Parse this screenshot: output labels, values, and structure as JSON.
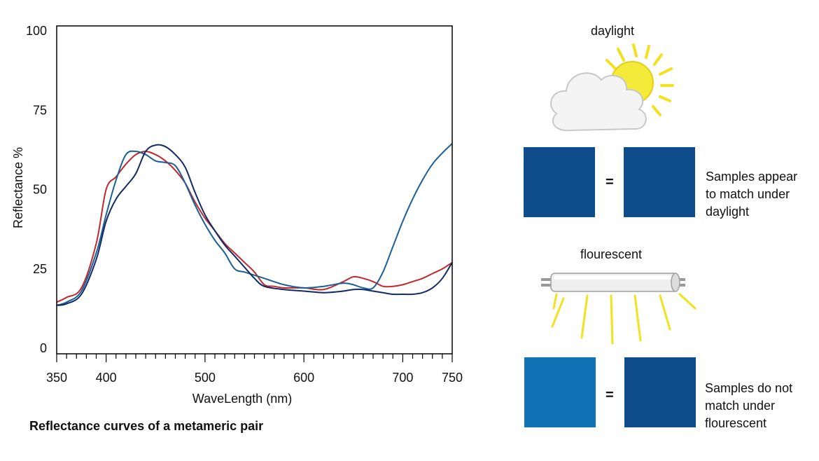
{
  "chart_data": {
    "type": "line",
    "title": "",
    "xlabel": "WaveLength (nm)",
    "ylabel": "Reflectance %",
    "xlim": [
      350,
      750
    ],
    "ylim": [
      0,
      100
    ],
    "xticks": [
      350,
      400,
      500,
      600,
      700,
      750
    ],
    "yticks": [
      0,
      25,
      50,
      75,
      100
    ],
    "grid": false,
    "series": [
      {
        "color": "#c0282d",
        "x": [
          350,
          360,
          375,
          390,
          400,
          410,
          420,
          430,
          440,
          450,
          460,
          470,
          480,
          490,
          500,
          510,
          520,
          530,
          540,
          550,
          560,
          570,
          580,
          600,
          620,
          640,
          650,
          660,
          670,
          680,
          690,
          700,
          710,
          720,
          730,
          740,
          750
        ],
        "y": [
          14.5,
          16,
          19,
          33,
          50,
          54,
          58,
          61,
          62,
          61,
          59,
          56,
          52,
          46,
          41,
          37,
          33,
          30,
          27,
          24,
          20,
          19.5,
          19,
          19,
          18.5,
          21,
          22.5,
          22,
          21,
          19.5,
          19.5,
          20,
          21,
          22,
          23.5,
          25,
          27
        ]
      },
      {
        "color": "#1a5f96",
        "x": [
          350,
          360,
          375,
          390,
          400,
          410,
          420,
          430,
          440,
          450,
          460,
          470,
          480,
          490,
          500,
          510,
          520,
          530,
          540,
          550,
          560,
          580,
          600,
          620,
          640,
          650,
          660,
          670,
          680,
          690,
          700,
          710,
          720,
          730,
          740,
          750
        ],
        "y": [
          13.5,
          14.5,
          18,
          30,
          42,
          53,
          61,
          62,
          61,
          59,
          58.5,
          57.5,
          52,
          45,
          39,
          34,
          30,
          25,
          24,
          23,
          22,
          20,
          19,
          19.5,
          20.5,
          20,
          19,
          19,
          24,
          32,
          40,
          47,
          53,
          58,
          61.5,
          64.5
        ]
      },
      {
        "color": "#102a66",
        "x": [
          350,
          360,
          375,
          390,
          400,
          410,
          420,
          430,
          440,
          450,
          460,
          470,
          480,
          490,
          500,
          510,
          520,
          530,
          540,
          550,
          560,
          580,
          600,
          620,
          640,
          650,
          660,
          670,
          680,
          690,
          700,
          710,
          720,
          730,
          740,
          750
        ],
        "y": [
          13.5,
          14,
          17,
          28,
          40,
          47,
          51,
          55,
          62,
          64,
          63.5,
          61,
          57,
          49,
          42,
          37,
          32.5,
          29,
          25.5,
          22,
          19.5,
          18.5,
          18,
          17.5,
          18,
          18.5,
          18.5,
          18,
          17.5,
          17,
          17,
          17,
          17.5,
          19,
          22,
          27
        ]
      }
    ]
  },
  "caption": "Reflectance curves of a metameric pair",
  "daylight": {
    "label": "daylight",
    "left_color": "#0f4c8c",
    "right_color": "#0f4c8c",
    "equals": "=",
    "note": [
      "Samples appear",
      "to match under",
      "daylight"
    ]
  },
  "fluorescent": {
    "label": "flourescent",
    "left_color": "#0f73b6",
    "right_color": "#0f4c8c",
    "equals": "=",
    "note": [
      "Samples do not",
      "match under",
      "flourescent"
    ]
  },
  "icons": [
    "sun-cloud-icon",
    "fluorescent-tube-icon"
  ]
}
